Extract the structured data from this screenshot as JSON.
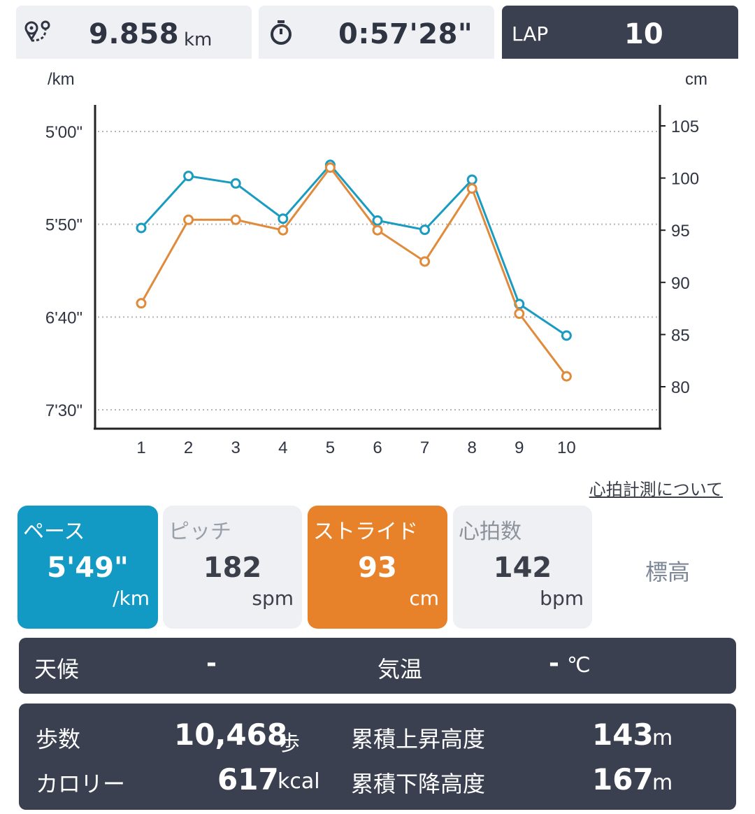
{
  "summary": {
    "distance_value": "9.858",
    "distance_unit": "km",
    "time_value": "0:57'28\"",
    "lap_label": "LAP",
    "lap_value": "10"
  },
  "chart_data": {
    "type": "line",
    "left_axis_label": "/km",
    "right_axis_label": "cm",
    "left_ticks": [
      "5'00\"",
      "5'50\"",
      "6'40\"",
      "7'30\""
    ],
    "right_ticks": [
      "105",
      "100",
      "95",
      "90",
      "85",
      "80"
    ],
    "x": [
      1,
      2,
      3,
      4,
      5,
      6,
      7,
      8,
      9,
      10
    ],
    "series": [
      {
        "metric": "pace",
        "axis": "left",
        "color": "#1a9cc0",
        "values_sec_per_km": [
          352,
          324,
          328,
          347,
          318,
          348,
          353,
          326,
          393,
          410
        ],
        "values": [
          "5'52\"",
          "5'24\"",
          "5'28\"",
          "5'47\"",
          "5'18\"",
          "5'48\"",
          "5'53\"",
          "5'26\"",
          "6'33\"",
          "6'50\""
        ]
      },
      {
        "metric": "stride",
        "axis": "right",
        "color": "#e08a3c",
        "values": [
          88,
          96,
          96,
          95,
          101,
          95,
          92,
          99,
          87,
          81
        ]
      }
    ],
    "grid": "dotted horizontal",
    "left_axis_reversed": true
  },
  "heart_rate_link": "心拍計測について",
  "tabs": {
    "pace": {
      "title": "ペース",
      "value": "5'49\"",
      "unit": "/km"
    },
    "pitch": {
      "title": "ピッチ",
      "value": "182",
      "unit": "spm"
    },
    "stride": {
      "title": "ストライド",
      "value": "93",
      "unit": "cm"
    },
    "heart_rate": {
      "title": "心拍数",
      "value": "142",
      "unit": "bpm"
    },
    "altitude": {
      "title": "標高"
    }
  },
  "weather": {
    "weather_label": "天候",
    "weather_value": "-",
    "temp_label": "気温",
    "temp_value": "-",
    "temp_unit": "℃"
  },
  "stats": {
    "steps_label": "歩数",
    "steps_value": "10,468",
    "steps_unit": "歩",
    "calories_label": "カロリー",
    "calories_value": "617",
    "calories_unit": "kcal",
    "ascent_label": "累積上昇高度",
    "ascent_value": "143",
    "ascent_unit": "m",
    "descent_label": "累積下降高度",
    "descent_value": "167",
    "descent_unit": "m"
  },
  "colors": {
    "pace": "#1299c4",
    "stride": "#e8822a",
    "dark_panel": "#3a4050"
  }
}
